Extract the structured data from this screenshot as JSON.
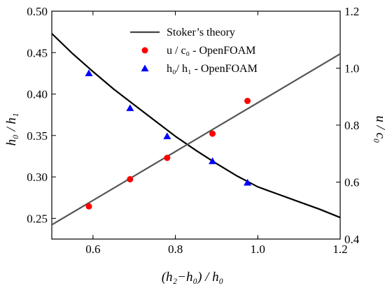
{
  "chart_data": {
    "type": "line",
    "xlabel": "(h₂−h₀) / h₀",
    "ylabel_left": "h₀ / h₁",
    "ylabel_right": "u / c₀",
    "xlim": [
      0.5,
      1.2
    ],
    "ylim_left": [
      0.225,
      0.5
    ],
    "ylim_right": [
      0.4,
      1.2
    ],
    "x_ticks": [
      "0.6",
      "0.8",
      "1.0",
      "1.2"
    ],
    "x_tick_values": [
      0.6,
      0.8,
      1.0,
      1.2
    ],
    "y_left_ticks": [
      "0.25",
      "0.30",
      "0.35",
      "0.40",
      "0.45",
      "0.50"
    ],
    "y_left_tick_values": [
      0.25,
      0.3,
      0.35,
      0.4,
      0.45,
      0.5
    ],
    "y_right_ticks": [
      "0.4",
      "0.6",
      "0.8",
      "1.0",
      "1.2"
    ],
    "y_right_tick_values": [
      0.4,
      0.6,
      0.8,
      1.0,
      1.2
    ],
    "legend_position": "top-center",
    "series": [
      {
        "name": "Stoker’s theory",
        "kind": "line",
        "axis": "left",
        "color": "#000000",
        "x": [
          0.5,
          0.55,
          0.6,
          0.65,
          0.7,
          0.75,
          0.8,
          0.85,
          0.9,
          0.95,
          1.0,
          1.05,
          1.1,
          1.15,
          1.2
        ],
        "y": [
          0.473,
          0.449,
          0.427,
          0.406,
          0.387,
          0.368,
          0.349,
          0.332,
          0.316,
          0.301,
          0.288,
          0.279,
          0.27,
          0.261,
          0.251
        ]
      },
      {
        "name": "Stoker’s theory",
        "kind": "line",
        "axis": "right",
        "color": "#555555",
        "legend": false,
        "x": [
          0.5,
          1.2
        ],
        "y": [
          0.45,
          1.05
        ]
      },
      {
        "name": "u / c₀ - OpenFOAM",
        "kind": "circle",
        "axis": "right",
        "color": "#ff0000",
        "x": [
          0.59,
          0.69,
          0.78,
          0.89,
          0.975
        ],
        "y": [
          0.515,
          0.61,
          0.685,
          0.77,
          0.885
        ]
      },
      {
        "name": "h₀/ h₁ - OpenFOAM",
        "kind": "triangle",
        "axis": "left",
        "color": "#0000ff",
        "x": [
          0.59,
          0.69,
          0.78,
          0.89,
          0.975
        ],
        "y": [
          0.425,
          0.383,
          0.349,
          0.319,
          0.293
        ]
      }
    ]
  }
}
